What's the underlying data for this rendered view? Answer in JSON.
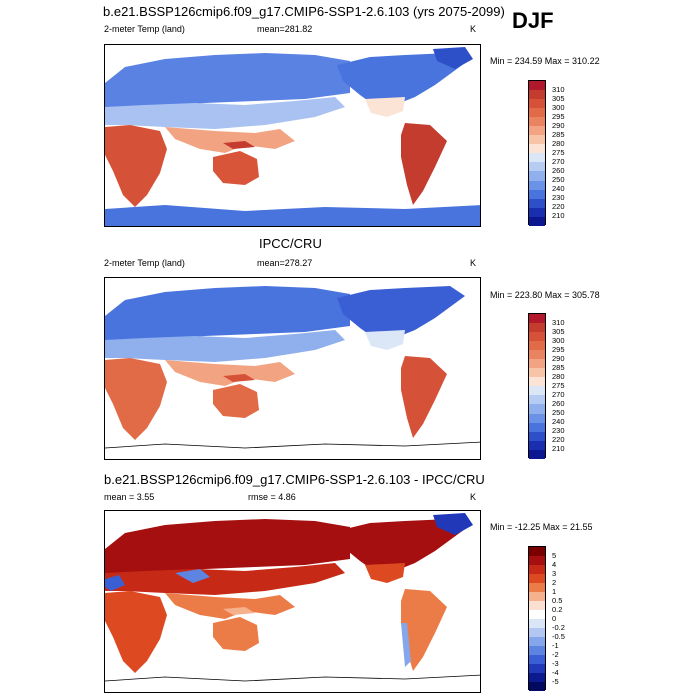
{
  "header": {
    "title": "b.e21.BSSP126cmip6.f09_g17.CMIP6-SSP1-2.6.103 (yrs 2075-2099)",
    "season": "DJF"
  },
  "panels": [
    {
      "id": "model",
      "title": "",
      "left_label": "2-meter Temp (land)",
      "center_label": "mean=",
      "center_value": "281.82",
      "unit": "K",
      "min_max": "Min = 234.59 Max = 310.22",
      "colorbar_levels": [
        "310",
        "305",
        "300",
        "295",
        "290",
        "285",
        "280",
        "275",
        "270",
        "260",
        "250",
        "240",
        "230",
        "220",
        "210"
      ]
    },
    {
      "id": "obs",
      "title": "IPCC/CRU",
      "left_label": "2-meter Temp (land)",
      "center_label": "mean=",
      "center_value": "278.27",
      "unit": "K",
      "min_max": "Min = 223.80 Max = 305.78",
      "colorbar_levels": [
        "310",
        "305",
        "300",
        "295",
        "290",
        "285",
        "280",
        "275",
        "270",
        "260",
        "250",
        "240",
        "230",
        "220",
        "210"
      ]
    },
    {
      "id": "diff",
      "title": "b.e21.BSSP126cmip6.f09_g17.CMIP6-SSP1-2.6.103 - IPCC/CRU",
      "left_label": "mean =",
      "left_value": "3.55",
      "center_label": "rmse =",
      "center_value": "4.86",
      "unit": "K",
      "min_max": "Min = -12.25 Max =  21.55",
      "colorbar_levels": [
        "5",
        "4",
        "3",
        "2",
        "1",
        "0.5",
        "0.2",
        "0",
        "-0.2",
        "-0.5",
        "-1",
        "-2",
        "-3",
        "-4",
        "-5"
      ]
    }
  ],
  "colors": {
    "temp_scale": [
      "#b2182b",
      "#c43c2e",
      "#d55238",
      "#e16a47",
      "#ea8460",
      "#f2a482",
      "#f7c4a8",
      "#fbe4d6",
      "#dbe6f7",
      "#b7ccf2",
      "#8fb0ec",
      "#6a92e6",
      "#4a74dd",
      "#2d50c9",
      "#1a2fb0",
      "#0c1690"
    ],
    "diff_scale": [
      "#7a0000",
      "#a50f0f",
      "#c62a16",
      "#dd4a22",
      "#ec7c47",
      "#f5b08c",
      "#fbe0d2",
      "#ffffff",
      "#dbe5f8",
      "#b2c8f2",
      "#85a6ea",
      "#5c84e0",
      "#3a5fd4",
      "#2138b8",
      "#0c1a90",
      "#020a60"
    ]
  }
}
